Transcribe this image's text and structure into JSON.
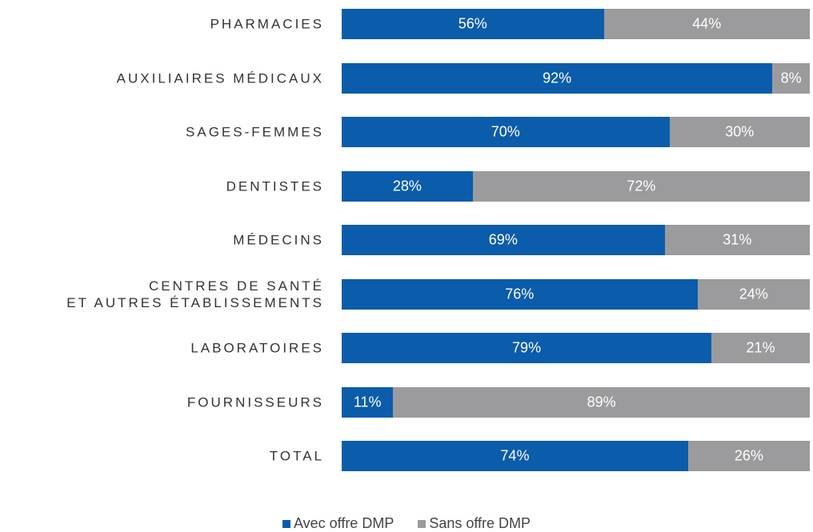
{
  "chart_data": {
    "type": "stacked_barh",
    "categories": [
      "PHARMACIES",
      "AUXILIAIRES MÉDICAUX",
      "SAGES-FEMMES",
      "DENTISTES",
      "MÉDECINS",
      "CENTRES DE SANTÉ\nET AUTRES ÉTABLISSEMENTS",
      "LABORATOIRES",
      "FOURNISSEURS",
      "TOTAL"
    ],
    "xlim": [
      0,
      100
    ],
    "series": [
      {
        "name": "Avec offre DMP",
        "color": "#0b5cab",
        "values": [
          56,
          92,
          70,
          28,
          69,
          76,
          79,
          11,
          74
        ],
        "value_labels": [
          "56%",
          "92%",
          "70%",
          "28%",
          "69%",
          "76%",
          "79%",
          "11%",
          "74%"
        ]
      },
      {
        "name": "Sans offre DMP",
        "color": "#9b9b9d",
        "values": [
          44,
          8,
          30,
          72,
          31,
          24,
          21,
          89,
          26
        ],
        "value_labels": [
          "44%",
          "8%",
          "30%",
          "72%",
          "31%",
          "24%",
          "21%",
          "89%",
          "26%"
        ]
      }
    ],
    "legend": "bottom"
  }
}
